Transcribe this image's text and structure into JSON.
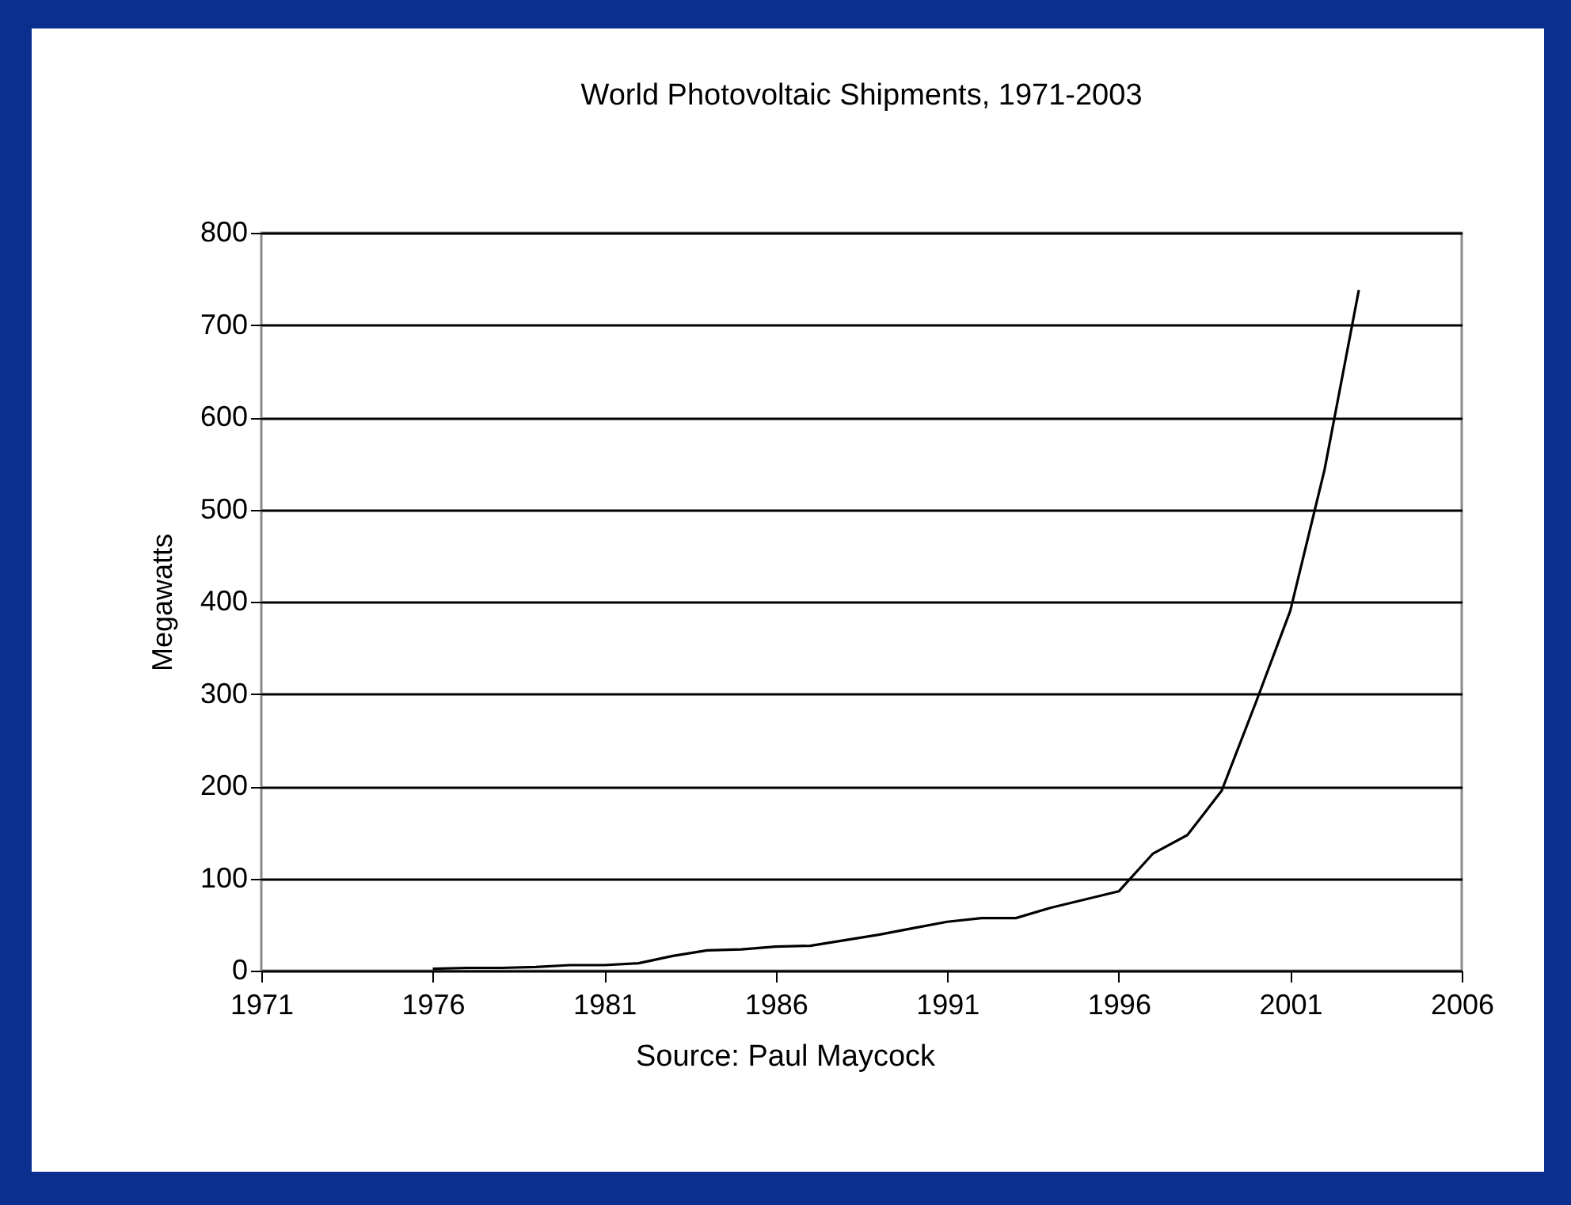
{
  "chart_data": {
    "type": "line",
    "title": "World Photovoltaic Shipments, 1971-2003",
    "ylabel": "Megawatts",
    "annotations": [
      "Source:  Paul Maycock"
    ],
    "x": [
      1976,
      1977,
      1978,
      1979,
      1980,
      1981,
      1982,
      1983,
      1984,
      1985,
      1986,
      1987,
      1988,
      1989,
      1990,
      1991,
      1992,
      1993,
      1994,
      1995,
      1996,
      1997,
      1998,
      1999,
      2000,
      2001,
      2002,
      2003
    ],
    "series": [
      {
        "color": "#000000",
        "values": [
          2,
          3,
          3,
          4,
          6,
          6,
          8,
          16,
          22,
          23,
          26,
          27,
          33,
          39,
          46,
          53,
          57,
          57,
          68,
          77,
          86,
          127,
          147,
          195,
          291,
          390,
          543,
          738
        ]
      }
    ],
    "xlim": [
      1971,
      2006
    ],
    "xticks": [
      1971,
      1976,
      1981,
      1986,
      1991,
      1996,
      2001,
      2006
    ],
    "ylim": [
      0,
      800
    ],
    "yticks": [
      0,
      100,
      200,
      300,
      400,
      500,
      600,
      700,
      800
    ],
    "grid": "y",
    "legend": false,
    "marker": "none",
    "line_style": "solid"
  }
}
